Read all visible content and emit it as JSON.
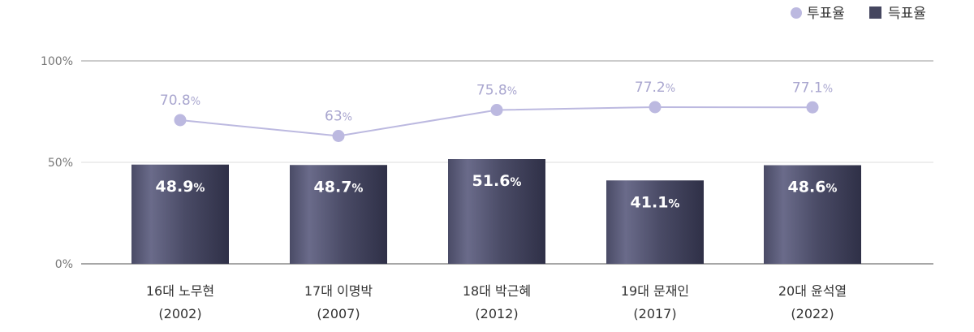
{
  "chart_data": {
    "type": "bar",
    "categories": [
      {
        "line1": "16대 노무현",
        "line2": "(2002)"
      },
      {
        "line1": "17대 이명박",
        "line2": "(2007)"
      },
      {
        "line1": "18대 박근혜",
        "line2": "(2012)"
      },
      {
        "line1": "19대 문재인",
        "line2": "(2017)"
      },
      {
        "line1": "20대 윤석열",
        "line2": "(2022)"
      }
    ],
    "series": [
      {
        "name": "투표율",
        "kind": "line",
        "color": "#bcb9e0",
        "values": [
          70.8,
          63,
          75.8,
          77.2,
          77.1
        ],
        "labels": [
          "70.8",
          "63",
          "75.8",
          "77.2",
          "77.1"
        ]
      },
      {
        "name": "득표율",
        "kind": "bar",
        "color": "#45465f",
        "values": [
          48.9,
          48.7,
          51.6,
          41.1,
          48.6
        ],
        "labels": [
          "48.9",
          "48.7",
          "51.6",
          "41.1",
          "48.6"
        ]
      }
    ],
    "unit": "%",
    "yticks": [
      "100%",
      "50%",
      "0%"
    ],
    "ylim": [
      0,
      100
    ],
    "grid": true,
    "legend_position": "top-right"
  }
}
